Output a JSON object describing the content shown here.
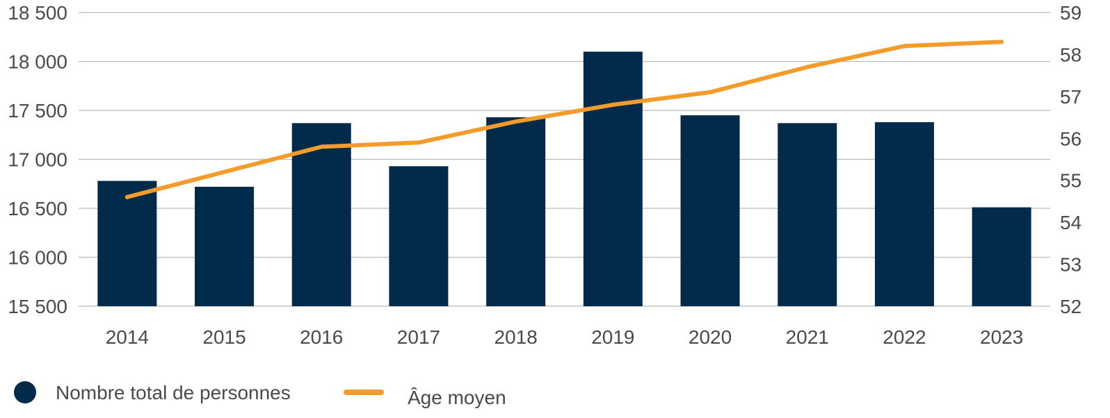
{
  "chart_data": {
    "type": "bar",
    "categories": [
      "2014",
      "2015",
      "2016",
      "2017",
      "2018",
      "2019",
      "2020",
      "2021",
      "2022",
      "2023"
    ],
    "series": [
      {
        "name": "Nombre total de personnes",
        "type": "bar",
        "axis": "left",
        "color": "#022a4b",
        "values": [
          16780,
          16720,
          17370,
          16930,
          17430,
          18100,
          17450,
          17370,
          17380,
          16510
        ]
      },
      {
        "name": "Âge moyen",
        "type": "line",
        "axis": "right",
        "color": "#f39c2b",
        "values": [
          54.6,
          55.2,
          55.8,
          55.9,
          56.4,
          56.8,
          57.1,
          57.7,
          58.2,
          58.3
        ]
      }
    ],
    "y_left": {
      "min": 15500,
      "max": 18500,
      "ticks": [
        15500,
        16000,
        16500,
        17000,
        17500,
        18000,
        18500
      ],
      "tick_labels": [
        "15 500",
        "16 000",
        "16 500",
        "17 000",
        "17 500",
        "18 000",
        "18 500"
      ]
    },
    "y_right": {
      "min": 52,
      "max": 59,
      "ticks": [
        52,
        53,
        54,
        55,
        56,
        57,
        58,
        59
      ],
      "tick_labels": [
        "52",
        "53",
        "54",
        "55",
        "56",
        "57",
        "58",
        "59"
      ]
    },
    "grid": true,
    "legend_position": "bottom-left",
    "gridline_color": "#b9b9b9",
    "text_color": "#4a4a4a"
  }
}
